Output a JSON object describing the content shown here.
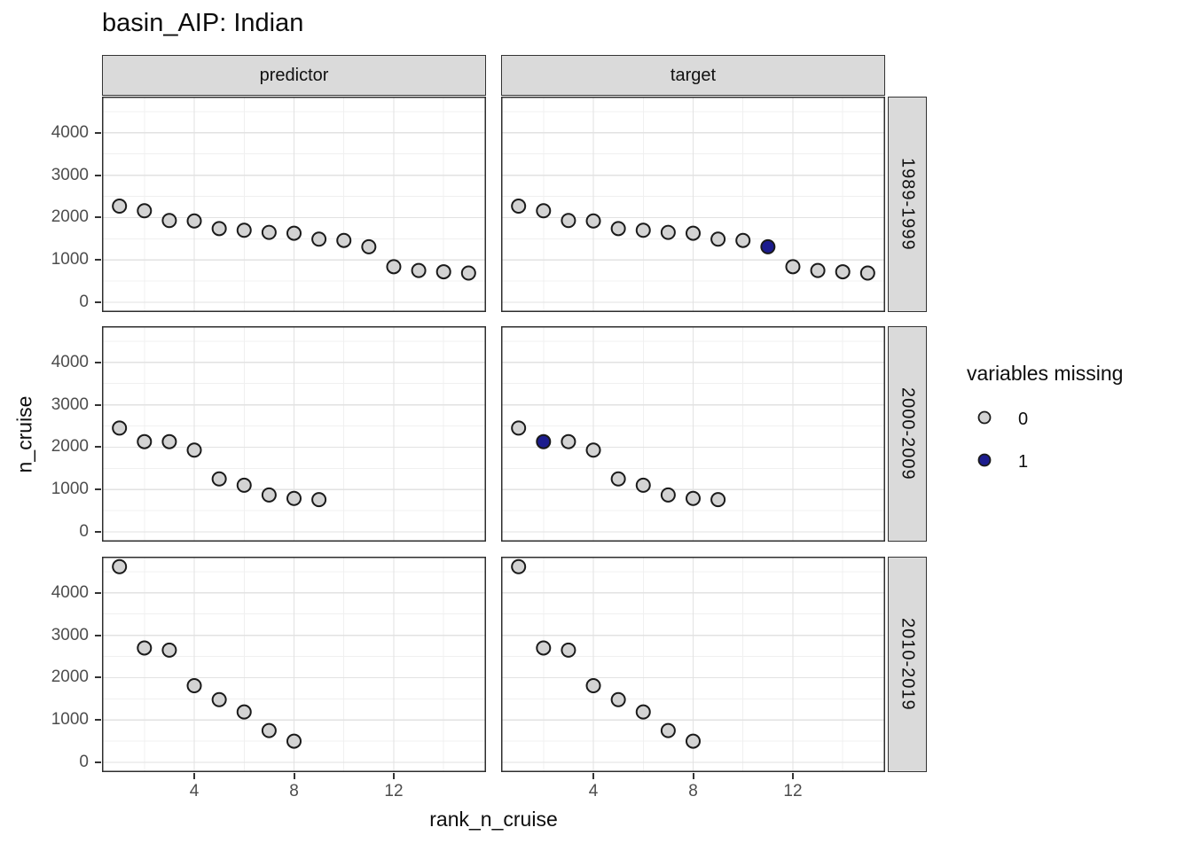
{
  "title": "basin_AIP: Indian",
  "axes": {
    "x_label": "rank_n_cruise",
    "y_label": "n_cruise"
  },
  "legend": {
    "title": "variables missing",
    "items": [
      {
        "label": "0",
        "color": "#d3d3d3"
      },
      {
        "label": "1",
        "color": "#1c1c8e"
      }
    ]
  },
  "chart_data": {
    "type": "scatter",
    "title": "basin_AIP: Indian",
    "xlabel": "rank_n_cruise",
    "ylabel": "n_cruise",
    "facet_columns": [
      "predictor",
      "target"
    ],
    "facet_rows": [
      "1989-1999",
      "2000-2009",
      "2010-2019"
    ],
    "x_domain": [
      0.3,
      15.7
    ],
    "y_domain": [
      -231,
      4855
    ],
    "x_major_ticks": [
      4,
      8,
      12
    ],
    "x_minor_gridlines": [
      2,
      6,
      10,
      14
    ],
    "y_major_ticks": [
      0,
      1000,
      2000,
      3000,
      4000
    ],
    "y_minor_gridlines": [
      500,
      1500,
      2500,
      3500,
      4500
    ],
    "grid": "on",
    "legend_position": "right",
    "point_colors": {
      "0": "#d3d3d3",
      "1": "#1c1c8e"
    },
    "point_stroke": "#1a1a1a",
    "rows": [
      {
        "facet_row": "1989-1999",
        "ranks": [
          1,
          2,
          3,
          4,
          5,
          6,
          7,
          8,
          9,
          10,
          11,
          12,
          13,
          14,
          15
        ],
        "n_cruise": [
          2270,
          2160,
          1930,
          1920,
          1740,
          1700,
          1650,
          1630,
          1490,
          1460,
          1310,
          840,
          750,
          720,
          690
        ],
        "missing_in_target": [
          11
        ]
      },
      {
        "facet_row": "2000-2009",
        "ranks": [
          1,
          2,
          3,
          4,
          5,
          6,
          7,
          8,
          9
        ],
        "n_cruise": [
          2450,
          2130,
          2130,
          1930,
          1250,
          1100,
          870,
          790,
          760
        ],
        "missing_in_target": [
          2
        ]
      },
      {
        "facet_row": "2010-2019",
        "ranks": [
          1,
          2,
          3,
          4,
          5,
          6,
          7,
          8
        ],
        "n_cruise": [
          4620,
          2700,
          2650,
          1810,
          1480,
          1190,
          750,
          500
        ],
        "missing_in_target": []
      }
    ]
  }
}
